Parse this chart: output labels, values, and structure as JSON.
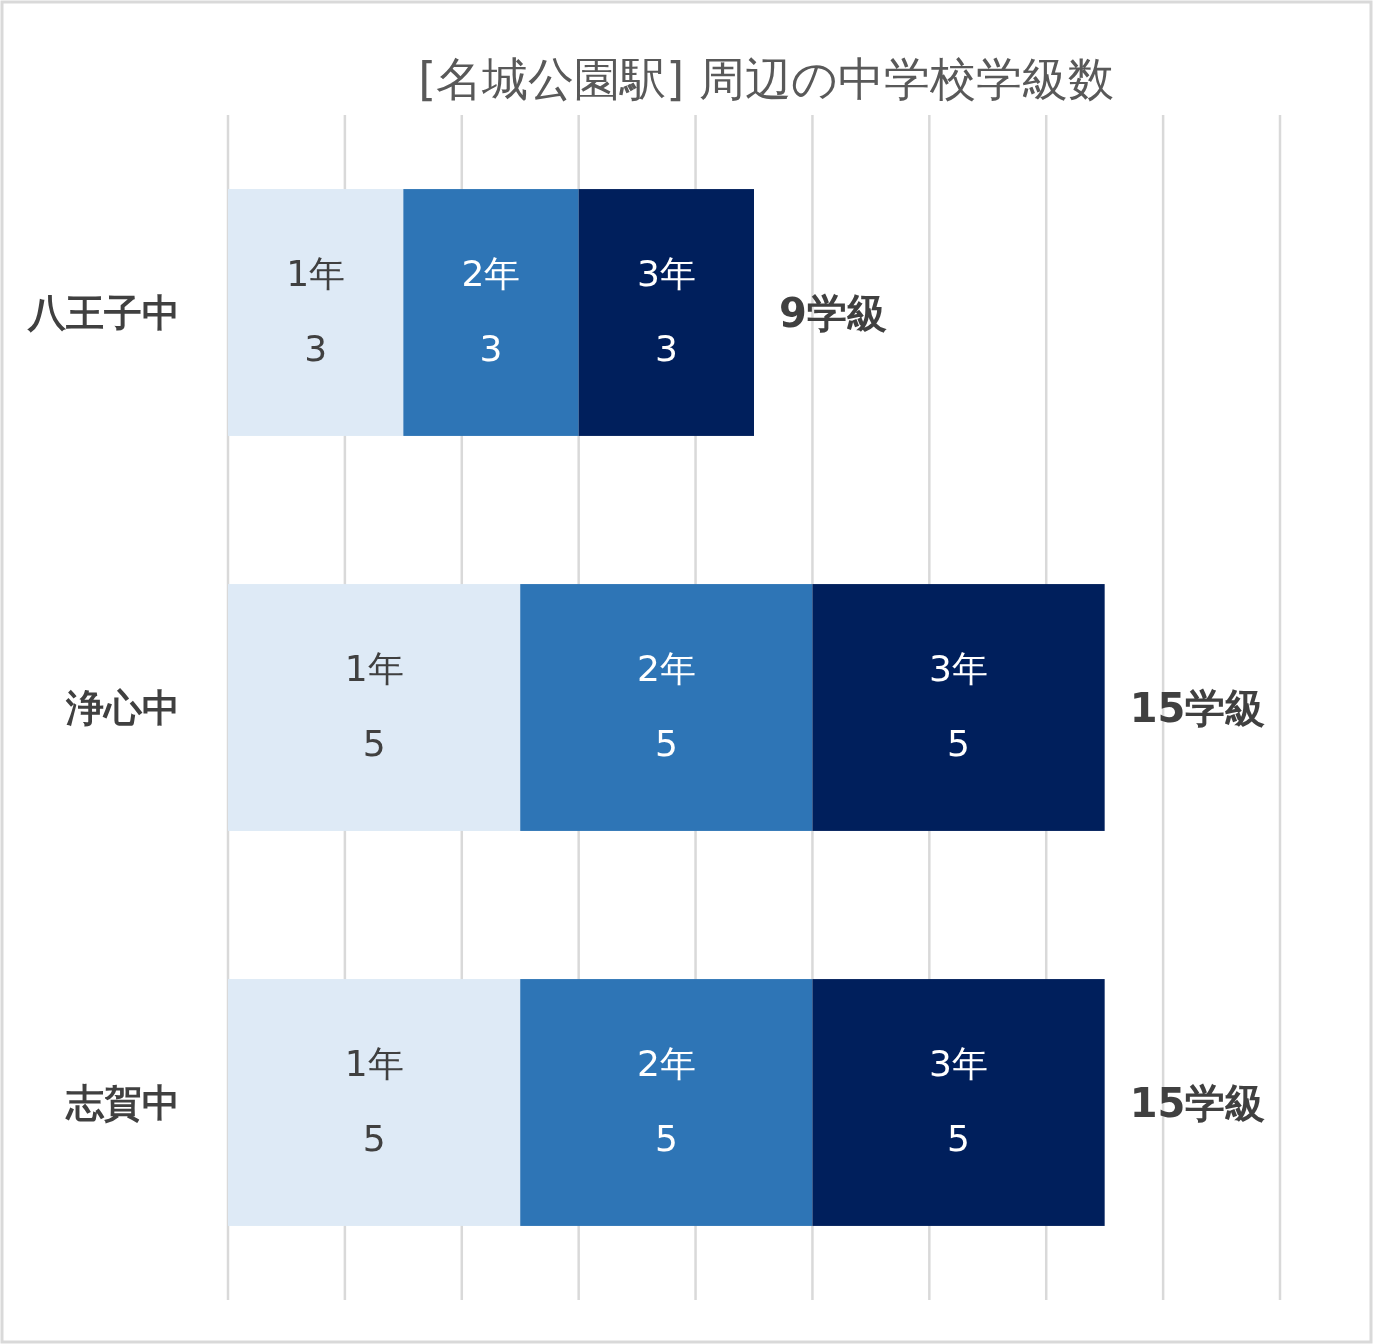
{
  "chart_data": {
    "type": "bar",
    "title": "[名城公園駅] 周辺の中学校学級数",
    "orientation": "horizontal",
    "stacked": true,
    "categories": [
      "八王子中",
      "浄心中",
      "志賀中"
    ],
    "series": [
      {
        "name": "1年",
        "color": "#deeaf6",
        "values": [
          3,
          5,
          5
        ]
      },
      {
        "name": "2年",
        "color": "#2e75b6",
        "values": [
          3,
          5,
          5
        ]
      },
      {
        "name": "3年",
        "color": "#001f5c",
        "values": [
          3,
          5,
          5
        ]
      }
    ],
    "xlim": [
      0,
      18
    ],
    "xticks": [
      {
        "value": 0,
        "label": null
      },
      {
        "value": 2,
        "label": null
      },
      {
        "value": 4,
        "label": null
      },
      {
        "value": 6,
        "label": null
      },
      {
        "value": 8,
        "label": null
      },
      {
        "value": 10,
        "label": null
      },
      {
        "value": 12,
        "label": null
      },
      {
        "value": 14,
        "label": null
      },
      {
        "value": 16,
        "label": null
      },
      {
        "value": 18,
        "label": null
      }
    ],
    "tick_labels": "y",
    "grid": "x",
    "data_labels": true,
    "totals": [
      "9学級",
      "15学級",
      "15学級"
    ]
  }
}
